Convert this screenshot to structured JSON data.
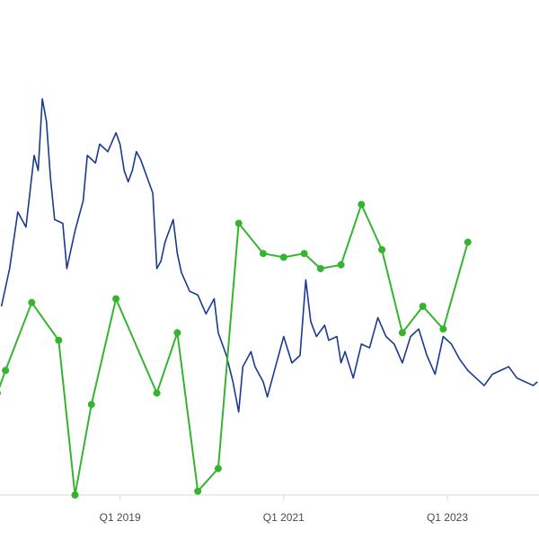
{
  "chart_data": {
    "type": "line",
    "x_axis_ticks": [
      "Q1 2019",
      "Q1 2021",
      "Q1 2023"
    ],
    "grid": false,
    "legend": "none",
    "colors": {
      "blue_series": "#1a3a8f",
      "green_series": "#35b52f",
      "axis": "#d9d9d9"
    },
    "series": [
      {
        "key": "blue",
        "points": [
          [
            2017.55,
            50
          ],
          [
            2017.65,
            60
          ],
          [
            2017.75,
            75
          ],
          [
            2017.85,
            71
          ],
          [
            2017.95,
            90
          ],
          [
            2018.0,
            86
          ],
          [
            2018.05,
            105
          ],
          [
            2018.1,
            99
          ],
          [
            2018.15,
            84
          ],
          [
            2018.2,
            73
          ],
          [
            2018.3,
            72
          ],
          [
            2018.35,
            60
          ],
          [
            2018.45,
            70
          ],
          [
            2018.55,
            78
          ],
          [
            2018.6,
            90
          ],
          [
            2018.7,
            88
          ],
          [
            2018.75,
            93
          ],
          [
            2018.85,
            91
          ],
          [
            2018.95,
            96
          ],
          [
            2019.0,
            93
          ],
          [
            2019.05,
            86
          ],
          [
            2019.1,
            83
          ],
          [
            2019.15,
            86
          ],
          [
            2019.2,
            91
          ],
          [
            2019.25,
            89
          ],
          [
            2019.3,
            86
          ],
          [
            2019.4,
            80
          ],
          [
            2019.45,
            60
          ],
          [
            2019.5,
            62
          ],
          [
            2019.55,
            67
          ],
          [
            2019.65,
            73
          ],
          [
            2019.7,
            64
          ],
          [
            2019.75,
            59
          ],
          [
            2019.85,
            54
          ],
          [
            2019.95,
            53
          ],
          [
            2020.05,
            48
          ],
          [
            2020.15,
            52
          ],
          [
            2020.2,
            43
          ],
          [
            2020.3,
            37
          ],
          [
            2020.38,
            30
          ],
          [
            2020.45,
            22
          ],
          [
            2020.5,
            34
          ],
          [
            2020.6,
            38
          ],
          [
            2020.65,
            34
          ],
          [
            2020.75,
            30
          ],
          [
            2020.8,
            26
          ],
          [
            2020.9,
            34
          ],
          [
            2021.0,
            42
          ],
          [
            2021.1,
            35
          ],
          [
            2021.2,
            37
          ],
          [
            2021.27,
            57
          ],
          [
            2021.33,
            46
          ],
          [
            2021.4,
            42
          ],
          [
            2021.5,
            45
          ],
          [
            2021.55,
            41
          ],
          [
            2021.65,
            42
          ],
          [
            2021.7,
            35
          ],
          [
            2021.75,
            38
          ],
          [
            2021.85,
            31
          ],
          [
            2021.95,
            40
          ],
          [
            2022.05,
            39
          ],
          [
            2022.15,
            47
          ],
          [
            2022.25,
            42
          ],
          [
            2022.35,
            40
          ],
          [
            2022.45,
            35
          ],
          [
            2022.55,
            42
          ],
          [
            2022.65,
            44
          ],
          [
            2022.75,
            37
          ],
          [
            2022.85,
            32
          ],
          [
            2022.95,
            42
          ],
          [
            2023.05,
            40
          ],
          [
            2023.15,
            36
          ],
          [
            2023.25,
            33
          ],
          [
            2023.35,
            31
          ],
          [
            2023.45,
            29
          ],
          [
            2023.55,
            32
          ],
          [
            2023.65,
            33
          ],
          [
            2023.75,
            34
          ],
          [
            2023.85,
            31
          ],
          [
            2023.95,
            30
          ],
          [
            2024.05,
            29
          ],
          [
            2024.1,
            30
          ]
        ]
      },
      {
        "key": "green",
        "points": [
          [
            2017.5,
            27
          ],
          [
            2017.6,
            33
          ],
          [
            2017.92,
            51
          ],
          [
            2018.25,
            41
          ],
          [
            2018.45,
            0
          ],
          [
            2018.65,
            24
          ],
          [
            2018.95,
            52
          ],
          [
            2019.45,
            27
          ],
          [
            2019.7,
            43
          ],
          [
            2019.95,
            1
          ],
          [
            2020.2,
            7
          ],
          [
            2020.45,
            72
          ],
          [
            2020.75,
            64
          ],
          [
            2021.0,
            63
          ],
          [
            2021.25,
            64
          ],
          [
            2021.45,
            60
          ],
          [
            2021.7,
            61
          ],
          [
            2021.95,
            77
          ],
          [
            2022.2,
            65
          ],
          [
            2022.45,
            43
          ],
          [
            2022.7,
            50
          ],
          [
            2022.95,
            44
          ],
          [
            2023.25,
            67
          ]
        ],
        "markers": true
      }
    ]
  }
}
